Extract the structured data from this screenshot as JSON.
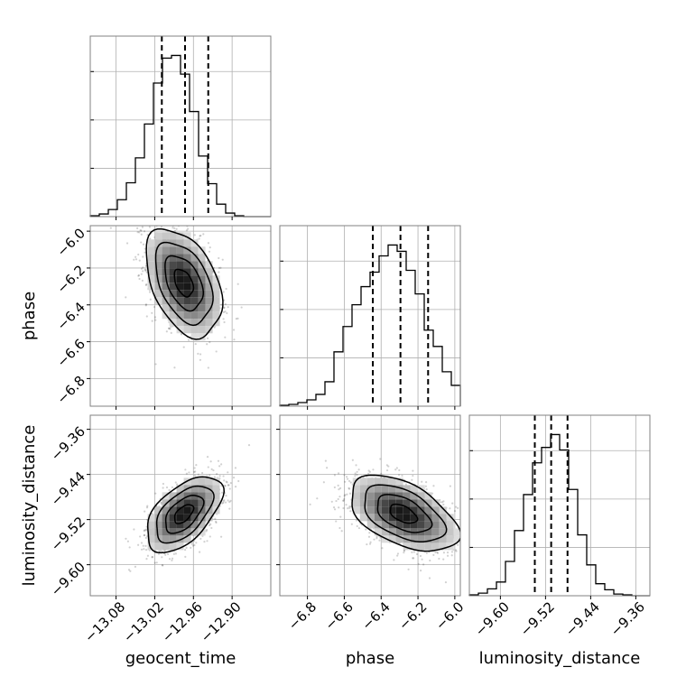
{
  "chart_data": {
    "type": "corner",
    "parameters": [
      "geocent_time",
      "phase",
      "luminosity_distance"
    ],
    "grid": true,
    "axes": {
      "geocent_time": {
        "range": [
          -13.12,
          -12.84
        ],
        "ticks": [
          -13.08,
          -13.02,
          -12.96,
          -12.9
        ],
        "tick_labels": [
          "−13.08",
          "−13.02",
          "−12.96",
          "−12.90"
        ]
      },
      "phase": {
        "range": [
          -6.95,
          -5.97
        ],
        "ticks": [
          -6.8,
          -6.6,
          -6.4,
          -6.2,
          -6.0
        ],
        "tick_labels": [
          "−6.8",
          "−6.6",
          "−6.4",
          "−6.2",
          "−6.0"
        ]
      },
      "luminosity_distance": {
        "range": [
          -9.655,
          -9.335
        ],
        "ticks": [
          -9.6,
          -9.52,
          -9.44,
          -9.36
        ],
        "tick_labels": [
          "−9.60",
          "−9.52",
          "−9.44",
          "−9.36"
        ]
      }
    },
    "marginals": [
      {
        "parameter": "geocent_time",
        "bin_edges": [
          -13.12,
          -13.106,
          -13.092,
          -13.078,
          -13.064,
          -13.05,
          -13.036,
          -13.022,
          -13.008,
          -12.994,
          -12.98,
          -12.966,
          -12.952,
          -12.938,
          -12.924,
          -12.91,
          -12.896,
          -12.882,
          -12.868,
          -12.854,
          -12.84
        ],
        "counts": [
          1,
          3,
          8,
          19,
          38,
          66,
          104,
          150,
          178,
          181,
          160,
          118,
          68,
          37,
          14,
          4,
          1,
          0,
          0,
          0
        ],
        "quantiles": [
          -13.009,
          -12.973,
          -12.937
        ]
      },
      {
        "parameter": "phase",
        "bin_edges": [
          -6.95,
          -6.901,
          -6.852,
          -6.803,
          -6.754,
          -6.705,
          -6.656,
          -6.607,
          -6.558,
          -6.509,
          -6.46,
          -6.411,
          -6.362,
          -6.313,
          -6.264,
          -6.215,
          -6.166,
          -6.117,
          -6.068,
          -6.019,
          -5.97
        ],
        "counts": [
          1,
          2,
          4,
          7,
          13,
          27,
          60,
          88,
          112,
          132,
          148,
          166,
          178,
          171,
          150,
          124,
          84,
          66,
          38,
          23
        ],
        "quantiles": [
          -6.445,
          -6.295,
          -6.145
        ]
      },
      {
        "parameter": "luminosity_distance",
        "bin_edges": [
          -9.655,
          -9.639,
          -9.623,
          -9.607,
          -9.591,
          -9.575,
          -9.559,
          -9.543,
          -9.527,
          -9.511,
          -9.495,
          -9.479,
          -9.463,
          -9.447,
          -9.431,
          -9.415,
          -9.399,
          -9.383,
          -9.367,
          -9.351,
          -9.335
        ],
        "counts": [
          1,
          3,
          8,
          16,
          40,
          76,
          118,
          155,
          173,
          188,
          170,
          124,
          71,
          36,
          14,
          7,
          2,
          1,
          0,
          0
        ],
        "quantiles": [
          -9.539,
          -9.51,
          -9.481
        ]
      }
    ],
    "joint_2d": [
      {
        "x": "geocent_time",
        "y": "phase",
        "mean": [
          -12.975,
          -6.28
        ],
        "std": [
          0.028,
          0.14
        ],
        "correlation": -0.42
      },
      {
        "x": "geocent_time",
        "y": "luminosity_distance",
        "mean": [
          -12.975,
          -9.51
        ],
        "std": [
          0.028,
          0.032
        ],
        "correlation": 0.55
      },
      {
        "x": "phase",
        "y": "luminosity_distance",
        "mean": [
          -6.28,
          -9.51
        ],
        "std": [
          0.14,
          0.032
        ],
        "correlation": -0.5
      }
    ],
    "contour_levels_sigma": [
      0.5,
      1.0,
      1.5,
      2.0
    ],
    "quantiles": [
      0.16,
      0.5,
      0.84
    ]
  }
}
